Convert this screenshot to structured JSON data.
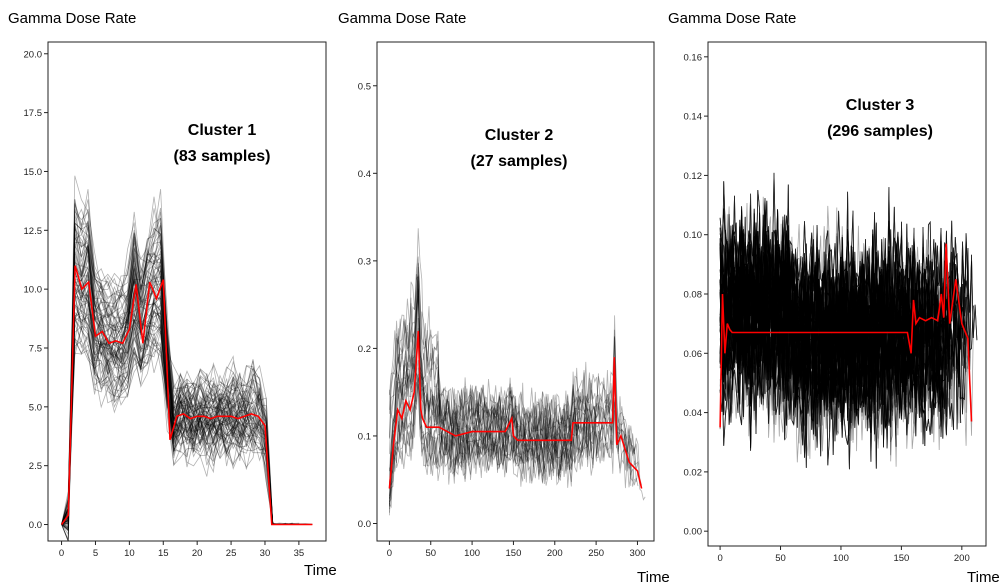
{
  "chart_data": [
    {
      "type": "line",
      "ylabel": "Gamma Dose Rate",
      "xlabel": "Time",
      "annotation": [
        "Cluster 1",
        "(83 samples)"
      ],
      "xlim": [
        -2,
        39
      ],
      "ylim": [
        -0.7,
        20.5
      ],
      "xticks": [
        0,
        5,
        10,
        15,
        20,
        25,
        30,
        35
      ],
      "yticks": [
        0.0,
        2.5,
        5.0,
        7.5,
        10.0,
        12.5,
        15.0,
        17.5,
        20.0
      ],
      "ytick_labels": [
        "0.0",
        "2.5",
        "5.0",
        "7.5",
        "10.0",
        "12.5",
        "15.0",
        "17.5",
        "20.0"
      ],
      "sample_count": 83,
      "sample_color": "#000000",
      "centroid_color": "#ff0000",
      "centroid": {
        "x": [
          0,
          1,
          2,
          3,
          4,
          5,
          6,
          7,
          8,
          9,
          10,
          11,
          12,
          13,
          14,
          15,
          16,
          17,
          18,
          19,
          20,
          21,
          22,
          23,
          24,
          25,
          26,
          27,
          28,
          29,
          30,
          31,
          32,
          33,
          34,
          35,
          36,
          37
        ],
        "y": [
          0.0,
          0.4,
          11.0,
          10.0,
          10.3,
          8.0,
          8.2,
          7.7,
          7.8,
          7.7,
          8.3,
          10.2,
          7.7,
          10.3,
          9.6,
          10.4,
          3.6,
          4.6,
          4.7,
          4.5,
          4.6,
          4.6,
          4.5,
          4.6,
          4.6,
          4.6,
          4.5,
          4.6,
          4.7,
          4.6,
          4.2,
          0.0,
          0.0,
          0.0,
          0.0,
          0.0,
          0.0,
          0.0
        ]
      }
    },
    {
      "type": "line",
      "ylabel": "Gamma Dose Rate",
      "xlabel": "Time",
      "annotation": [
        "Cluster 2",
        "(27 samples)"
      ],
      "xlim": [
        -15,
        320
      ],
      "ylim": [
        -0.02,
        0.55
      ],
      "xticks": [
        0,
        50,
        100,
        150,
        200,
        250,
        300
      ],
      "yticks": [
        0.0,
        0.1,
        0.2,
        0.3,
        0.4,
        0.5
      ],
      "ytick_labels": [
        "0.0",
        "0.1",
        "0.2",
        "0.3",
        "0.4",
        "0.5"
      ],
      "sample_count": 27,
      "sample_color": "#000000",
      "centroid_color": "#ff0000",
      "centroid": {
        "x": [
          0,
          5,
          10,
          15,
          20,
          25,
          30,
          35,
          38,
          40,
          45,
          50,
          55,
          60,
          80,
          100,
          140,
          148,
          150,
          155,
          160,
          200,
          220,
          222,
          260,
          270,
          272,
          275,
          280,
          290,
          300,
          305
        ],
        "y": [
          0.04,
          0.09,
          0.13,
          0.12,
          0.14,
          0.13,
          0.15,
          0.22,
          0.13,
          0.12,
          0.11,
          0.11,
          0.11,
          0.11,
          0.1,
          0.105,
          0.105,
          0.12,
          0.1,
          0.095,
          0.095,
          0.095,
          0.095,
          0.115,
          0.115,
          0.115,
          0.19,
          0.09,
          0.1,
          0.07,
          0.06,
          0.04
        ]
      }
    },
    {
      "type": "line",
      "ylabel": "Gamma Dose Rate",
      "xlabel": "Time",
      "annotation": [
        "Cluster 3",
        "(296 samples)"
      ],
      "xlim": [
        -10,
        220
      ],
      "ylim": [
        -0.005,
        0.165
      ],
      "xticks": [
        0,
        50,
        100,
        150,
        200
      ],
      "yticks": [
        0.0,
        0.02,
        0.04,
        0.06,
        0.08,
        0.1,
        0.12,
        0.14,
        0.16
      ],
      "ytick_labels": [
        "0.00",
        "0.02",
        "0.04",
        "0.06",
        "0.08",
        "0.10",
        "0.12",
        "0.14",
        "0.16"
      ],
      "sample_count": 296,
      "sample_color": "#000000",
      "centroid_color": "#ff0000",
      "centroid": {
        "x": [
          0,
          2,
          4,
          6,
          8,
          10,
          20,
          50,
          100,
          155,
          158,
          160,
          162,
          165,
          170,
          175,
          180,
          183,
          185,
          187,
          190,
          195,
          200,
          205,
          208
        ],
        "y": [
          0.035,
          0.08,
          0.06,
          0.07,
          0.068,
          0.067,
          0.067,
          0.067,
          0.067,
          0.067,
          0.06,
          0.078,
          0.07,
          0.072,
          0.071,
          0.072,
          0.071,
          0.08,
          0.072,
          0.097,
          0.07,
          0.085,
          0.07,
          0.065,
          0.037
        ]
      }
    }
  ]
}
